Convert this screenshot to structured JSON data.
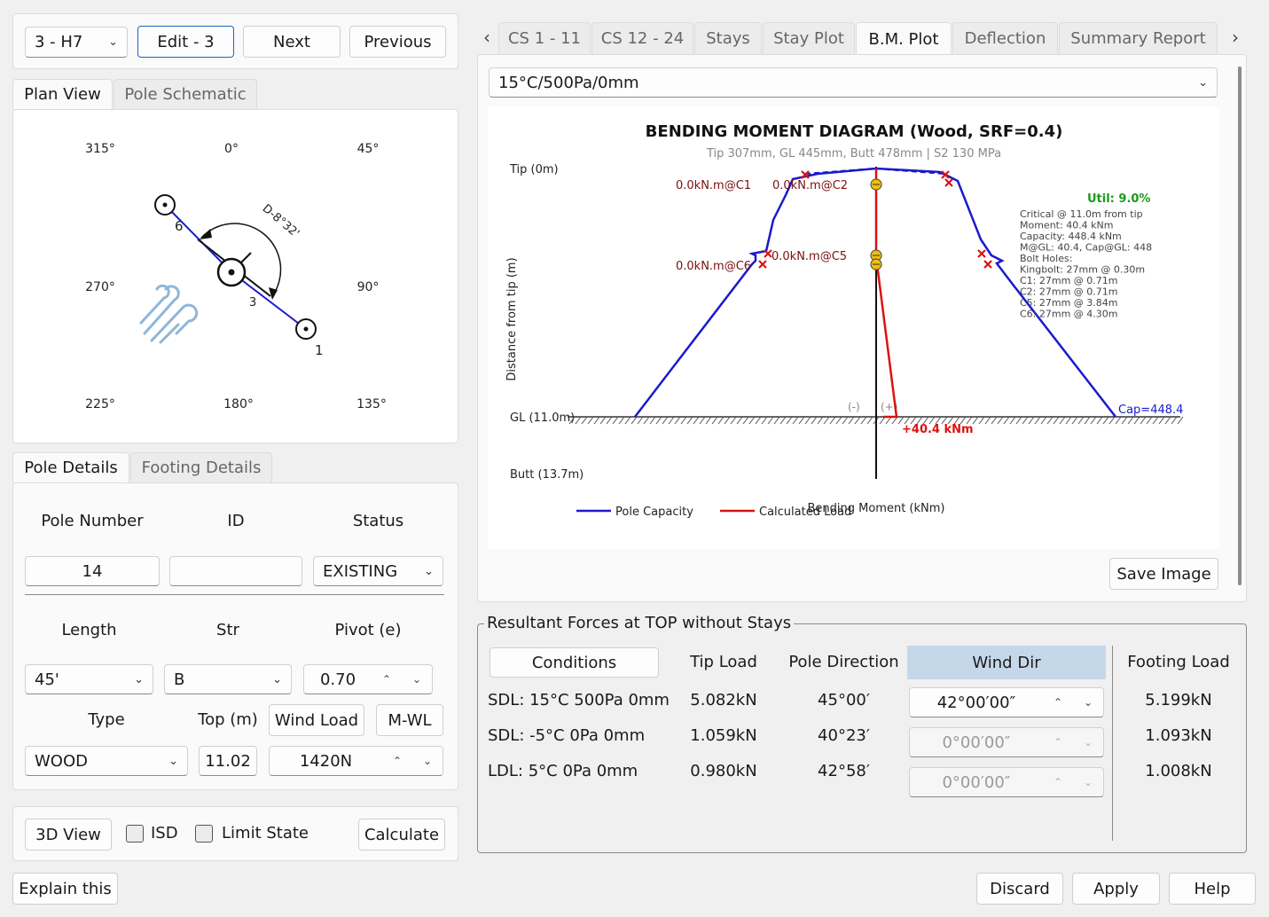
{
  "top_bar": {
    "pole_select": "3 - H7",
    "edit_label": "Edit - 3",
    "next_label": "Next",
    "previous_label": "Previous"
  },
  "left_tabs": [
    "Plan View",
    "Pole Schematic"
  ],
  "plan_view": {
    "angles": {
      "a315": "315°",
      "a0": "0°",
      "a45": "45°",
      "a270": "270°",
      "a90": "90°",
      "a225": "225°",
      "a180": "180°",
      "a135": "135°"
    },
    "deviation_label": "D-8°32'",
    "node_labels": {
      "n6": "6",
      "n3": "3",
      "n1": "1"
    }
  },
  "detail_tabs": [
    "Pole Details",
    "Footing Details"
  ],
  "pole_details": {
    "headers": {
      "pole_number": "Pole Number",
      "id": "ID",
      "status": "Status"
    },
    "pole_number": "14",
    "id": "",
    "status": "EXISTING",
    "headers2": {
      "length": "Length",
      "str": "Str",
      "pivot": "Pivot (e)"
    },
    "length": "45'",
    "str": "B",
    "pivot": "0.70",
    "headers3": {
      "type": "Type",
      "top": "Top (m)",
      "wind_load": "Wind Load",
      "mwl": "M-WL"
    },
    "type": "WOOD",
    "top": "11.02",
    "wind_load": "1420N"
  },
  "bottom_left": {
    "view3d": "3D View",
    "isd": "ISD",
    "limit_state": "Limit State",
    "calculate": "Calculate",
    "explain": "Explain this"
  },
  "right_tabs": [
    "CS 1 - 11",
    "CS 12 - 24",
    "Stays",
    "Stay Plot",
    "B.M. Plot",
    "Deflection",
    "Summary Report"
  ],
  "condition_select": "15°C/500Pa/0mm",
  "chart_data": {
    "type": "line",
    "title": "BENDING MOMENT DIAGRAM (Wood, SRF=0.4)",
    "subtitle": "Tip 307mm, GL 445mm, Butt 478mm  |  S2 130 MPa",
    "ylabel": "Distance from tip (m)",
    "xlabel": "Bending Moment (kNm)",
    "y_ticks": {
      "tip": "Tip (0m)",
      "gl": "GL (11.0m)",
      "butt": "Butt (13.7m)"
    },
    "sign_neg": "(-)",
    "sign_pos": "(+)",
    "calc_annotation": "+40.4 kNm",
    "cap_annotation": "Cap=448.4",
    "util": "Util: 9.0%",
    "info_lines": [
      "Critical @ 11.0m from tip",
      "Moment: 40.4 kNm",
      "Capacity: 448.4 kNm",
      "M@GL: 40.4, Cap@GL: 448",
      "Bolt Holes:",
      "Kingbolt: 27mm @ 0.30m",
      "C1: 27mm @ 0.71m",
      "C2: 27mm @ 0.71m",
      "C5: 27mm @ 3.84m",
      "C6: 27mm @ 4.30m"
    ],
    "hole_labels": {
      "c1": "0.0kN.m@C1",
      "c2": "0.0kN.m@C2",
      "c5": "0.0kN.m@C5",
      "c6": "0.0kN.m@C6"
    },
    "series": [
      {
        "name": "Pole Capacity",
        "color": "#1a1acc"
      },
      {
        "name": "Calculated Load",
        "color": "#dd1111"
      }
    ]
  },
  "save_image": "Save Image",
  "resultant": {
    "title": "Resultant Forces at TOP without Stays",
    "headers": {
      "conditions": "Conditions",
      "tip_load": "Tip Load",
      "pole_direction": "Pole Direction",
      "wind_dir": "Wind Dir",
      "footing_load": "Footing Load"
    },
    "rows": [
      {
        "condition": "SDL: 15°C 500Pa 0mm",
        "tip_load": "5.082kN",
        "pole_direction": "45°00′",
        "wind_dir": "42°00′00″",
        "footing_load": "5.199kN"
      },
      {
        "condition": "SDL: -5°C 0Pa 0mm",
        "tip_load": "1.059kN",
        "pole_direction": "40°23′",
        "wind_dir": "0°00′00″",
        "footing_load": "1.093kN"
      },
      {
        "condition": "LDL: 5°C 0Pa 0mm",
        "tip_load": "0.980kN",
        "pole_direction": "42°58′",
        "wind_dir": "0°00′00″",
        "footing_load": "1.008kN"
      }
    ]
  },
  "footer": {
    "discard": "Discard",
    "apply": "Apply",
    "help": "Help"
  }
}
